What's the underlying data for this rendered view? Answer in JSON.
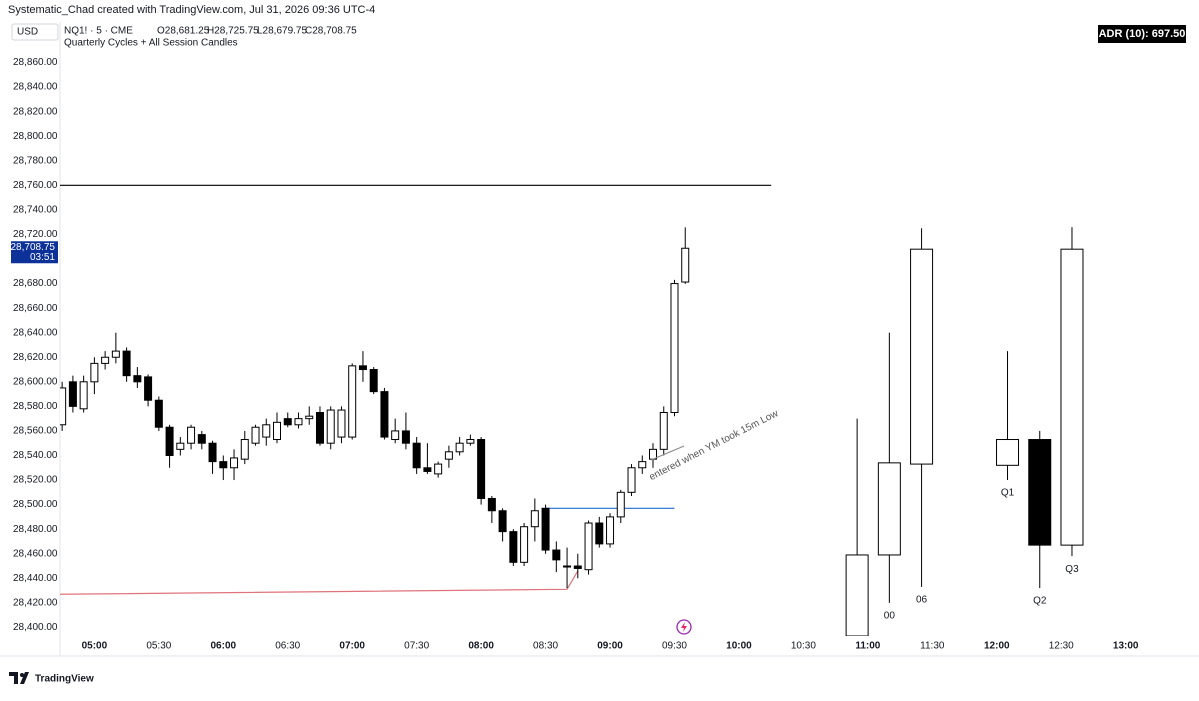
{
  "header": {
    "credit": "Systematic_Chad created with TradingView.com, Jul 31, 2026 09:36 UTC-4",
    "currency": "USD",
    "symbol": "NQ1! · 5 · CME",
    "ohlc": [
      "O28,681.25",
      "H28,725.75",
      "L28,679.75",
      "C28,708.75"
    ],
    "indicator": "Quarterly Cycles + All Session Candles",
    "adr": "ADR (10): 697.50"
  },
  "chart_data": {
    "type": "candlestick",
    "x": [
      "04:45",
      "04:50",
      "04:55",
      "05:00",
      "05:05",
      "05:10",
      "05:15",
      "05:20",
      "05:25",
      "05:30",
      "05:35",
      "05:40",
      "05:45",
      "05:50",
      "05:55",
      "06:00",
      "06:05",
      "06:10",
      "06:15",
      "06:20",
      "06:25",
      "06:30",
      "06:35",
      "06:40",
      "06:45",
      "06:50",
      "06:55",
      "07:00",
      "07:05",
      "07:10",
      "07:15",
      "07:20",
      "07:25",
      "07:30",
      "07:35",
      "07:40",
      "07:45",
      "07:50",
      "07:55",
      "08:00",
      "08:05",
      "08:10",
      "08:15",
      "08:20",
      "08:25",
      "08:30",
      "08:35",
      "08:40",
      "08:45",
      "08:50",
      "08:55",
      "09:00",
      "09:05",
      "09:10",
      "09:15",
      "09:20",
      "09:25",
      "09:30",
      "09:35"
    ],
    "open": [
      28565,
      28600,
      28578,
      28600,
      28615,
      28620,
      28625,
      28605,
      28604,
      28585,
      28563,
      28545,
      28550,
      28557,
      28550,
      28535,
      28530,
      28537,
      28550,
      28555,
      28553,
      28570,
      28565,
      28570,
      28575,
      28550,
      28555,
      28555,
      28613,
      28610,
      28592,
      28553,
      28560,
      28550,
      28530,
      28525,
      28537,
      28543,
      28550,
      28553,
      28505,
      28495,
      28478,
      28453,
      28482,
      28497,
      28463,
      28450,
      28450,
      28447,
      28485,
      28468,
      28490,
      28510,
      28530,
      28537,
      28545,
      28575,
      28681.25
    ],
    "high": [
      28600,
      28605,
      28605,
      28620,
      28625,
      28640,
      28628,
      28612,
      28606,
      28588,
      28565,
      28555,
      28565,
      28560,
      28552,
      28540,
      28545,
      28560,
      28565,
      28570,
      28575,
      28575,
      28575,
      28580,
      28580,
      28580,
      28580,
      28615,
      28625,
      28612,
      28595,
      28570,
      28575,
      28555,
      28550,
      28535,
      28548,
      28555,
      28557,
      28555,
      28507,
      28497,
      28480,
      28485,
      28505,
      28500,
      28470,
      28465,
      28460,
      28487,
      28490,
      28493,
      28512,
      28533,
      28540,
      28550,
      28580,
      28683,
      28725.75
    ],
    "low": [
      28560,
      28575,
      28575,
      28590,
      28610,
      28615,
      28600,
      28595,
      28580,
      28560,
      28530,
      28540,
      28545,
      28545,
      28525,
      28520,
      28520,
      28533,
      28548,
      28548,
      28550,
      28563,
      28562,
      28565,
      28548,
      28545,
      28550,
      28553,
      28600,
      28590,
      28553,
      28550,
      28545,
      28525,
      28525,
      28522,
      28530,
      28540,
      28548,
      28500,
      28485,
      28470,
      28450,
      28450,
      28470,
      28460,
      28445,
      28432,
      28440,
      28443,
      28465,
      28465,
      28485,
      28507,
      28525,
      28530,
      28540,
      28572,
      28679.75
    ],
    "close": [
      28595,
      28580,
      28600,
      28615,
      28620,
      28625,
      28605,
      28600,
      28585,
      28563,
      28540,
      28550,
      28563,
      28550,
      28535,
      28530,
      28538,
      28553,
      28563,
      28565,
      28567,
      28565,
      28570,
      28572,
      28550,
      28577,
      28577,
      28613,
      28610,
      28592,
      28555,
      28560,
      28550,
      28530,
      28527,
      28533,
      28543,
      28550,
      28553,
      28505,
      28495,
      28478,
      28453,
      28482,
      28495,
      28463,
      28455,
      28450,
      28448,
      28485,
      28468,
      28490,
      28510,
      28530,
      28535,
      28545,
      28575,
      28680,
      28708.75
    ],
    "up_color": "#ffffff",
    "down_color": "#000000",
    "border_color": "#000000",
    "cycles": {
      "x": [
        "10:55",
        "11:10",
        "11:25",
        "12:05",
        "12:20",
        "12:35"
      ],
      "open": [
        28393,
        28459,
        28533,
        28532,
        28553,
        28467
      ],
      "high": [
        28570,
        28640,
        28725,
        28625,
        28560,
        28726
      ],
      "low": [
        28393,
        28420,
        28433,
        28520,
        28432,
        28458
      ],
      "close": [
        28459,
        28534,
        28708,
        28553,
        28467,
        28708
      ],
      "labels": [
        null,
        "00",
        "06",
        "Q1",
        "Q2",
        "Q3"
      ]
    },
    "lines": [
      {
        "color": "#000000",
        "x": [
          "04:44",
          "10:15"
        ],
        "y": [
          28760,
          28760
        ]
      },
      {
        "color": "#1e6fd0",
        "x": [
          "08:30",
          "09:30"
        ],
        "y": [
          28497,
          28497
        ]
      },
      {
        "color": "#e0737a",
        "x": [
          "04:44",
          "08:40",
          "08:45"
        ],
        "y": [
          28427,
          28431,
          28446
        ]
      }
    ],
    "annotation": "entered when YM took 15m Low",
    "last_price": {
      "value": 28708.75,
      "label": "28,708.75"
    },
    "countdown": "03:51",
    "xlim": [
      "04:44",
      "13:29"
    ],
    "xticks": [
      "05:00",
      "05:30",
      "06:00",
      "06:30",
      "07:00",
      "07:30",
      "08:00",
      "08:30",
      "09:00",
      "09:30",
      "10:00",
      "10:30",
      "11:00",
      "11:30",
      "12:00",
      "12:30",
      "13:00"
    ],
    "ylim": [
      28393,
      28893
    ],
    "yticks": [
      {
        "value": 28400,
        "label": "28,400.00"
      },
      {
        "value": 28420,
        "label": "28,420.00"
      },
      {
        "value": 28440,
        "label": "28,440.00"
      },
      {
        "value": 28460,
        "label": "28,460.00"
      },
      {
        "value": 28480,
        "label": "28,480.00"
      },
      {
        "value": 28500,
        "label": "28,500.00"
      },
      {
        "value": 28520,
        "label": "28,520.00"
      },
      {
        "value": 28540,
        "label": "28,540.00"
      },
      {
        "value": 28560,
        "label": "28,560.00"
      },
      {
        "value": 28580,
        "label": "28,580.00"
      },
      {
        "value": 28600,
        "label": "28,600.00"
      },
      {
        "value": 28620,
        "label": "28,620.00"
      },
      {
        "value": 28640,
        "label": "28,640.00"
      },
      {
        "value": 28660,
        "label": "28,660.00"
      },
      {
        "value": 28680,
        "label": "28,680.00"
      },
      {
        "value": 28700,
        "label": "28,700.00"
      },
      {
        "value": 28720,
        "label": "28,720.00"
      },
      {
        "value": 28740,
        "label": "28,740.00"
      },
      {
        "value": 28760,
        "label": "28,760.00"
      },
      {
        "value": 28780,
        "label": "28,780.00"
      },
      {
        "value": 28800,
        "label": "28,800.00"
      },
      {
        "value": 28820,
        "label": "28,820.00"
      },
      {
        "value": 28840,
        "label": "28,840.00"
      },
      {
        "value": 28860,
        "label": "28,860.00"
      }
    ]
  },
  "footer": {
    "brand": "TradingView"
  }
}
